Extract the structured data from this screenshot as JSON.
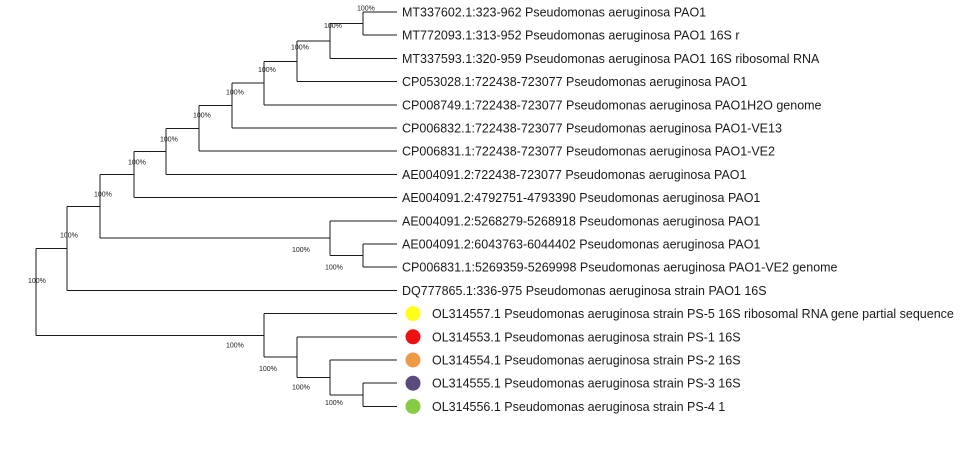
{
  "tree": {
    "leaves": [
      {
        "id": "L1",
        "label": "MT337602.1:323-962 Pseudomonas aeruginosa PAO1"
      },
      {
        "id": "L2",
        "label": "MT772093.1:313-952 Pseudomonas aeruginosa PAO1 16S r"
      },
      {
        "id": "L3",
        "label": "MT337593.1:320-959 Pseudomonas aeruginosa PAO1 16S ribosomal RNA"
      },
      {
        "id": "L4",
        "label": "CP053028.1:722438-723077 Pseudomonas aeruginosa PAO1"
      },
      {
        "id": "L5",
        "label": "CP008749.1:722438-723077 Pseudomonas aeruginosa PAO1H2O genome"
      },
      {
        "id": "L6",
        "label": "CP006832.1:722438-723077 Pseudomonas aeruginosa PAO1-VE13"
      },
      {
        "id": "L7",
        "label": "CP006831.1:722438-723077 Pseudomonas aeruginosa PAO1-VE2"
      },
      {
        "id": "L8",
        "label": "AE004091.2:722438-723077 Pseudomonas aeruginosa PAO1"
      },
      {
        "id": "L9",
        "label": "AE004091.2:4792751-4793390 Pseudomonas aeruginosa PAO1"
      },
      {
        "id": "L10",
        "label": "AE004091.2:5268279-5268918 Pseudomonas aeruginosa PAO1"
      },
      {
        "id": "L11",
        "label": "AE004091.2:6043763-6044402 Pseudomonas aeruginosa PAO1"
      },
      {
        "id": "L12",
        "label": "CP006831.1:5269359-5269998 Pseudomonas aeruginosa PAO1-VE2 genome"
      },
      {
        "id": "L13",
        "label": "DQ777865.1:336-975 Pseudomonas aeruginosa strain PAO1 16S"
      },
      {
        "id": "L14",
        "label": "OL314557.1 Pseudomonas aeruginosa strain PS-5 16S ribosomal RNA gene partial sequence",
        "marker_color": "#ffff1a"
      },
      {
        "id": "L15",
        "label": "OL314553.1 Pseudomonas aeruginosa strain PS-1 16S",
        "marker_color": "#ee1111"
      },
      {
        "id": "L16",
        "label": "OL314554.1 Pseudomonas aeruginosa strain PS-2 16S",
        "marker_color": "#ee9944"
      },
      {
        "id": "L17",
        "label": "OL314555.1 Pseudomonas aeruginosa strain PS-3 16S",
        "marker_color": "#5b4a7c"
      },
      {
        "id": "L18",
        "label": "OL314556.1 Pseudomonas aeruginosa strain PS-4 1",
        "marker_color": "#88cc44"
      }
    ],
    "clades": [
      {
        "id": "root",
        "support": "100%",
        "children": [
          "A",
          "P"
        ]
      },
      {
        "id": "A",
        "support": "100%",
        "children": [
          "B",
          "L13"
        ]
      },
      {
        "id": "B",
        "support": "100%",
        "children": [
          "C",
          "M"
        ]
      },
      {
        "id": "C",
        "support": "100%",
        "children": [
          "D",
          "L9"
        ]
      },
      {
        "id": "D",
        "support": "100%",
        "children": [
          "E",
          "L8"
        ]
      },
      {
        "id": "E",
        "support": "100%",
        "children": [
          "F",
          "L7"
        ]
      },
      {
        "id": "F",
        "support": "100%",
        "children": [
          "G",
          "L6"
        ]
      },
      {
        "id": "G",
        "support": "100%",
        "children": [
          "H",
          "L5"
        ]
      },
      {
        "id": "H",
        "support": "100%",
        "children": [
          "I",
          "L4"
        ]
      },
      {
        "id": "I",
        "support": "100%",
        "children": [
          "J",
          "L3"
        ]
      },
      {
        "id": "J",
        "support": "100%",
        "children": [
          "L1",
          "L2"
        ]
      },
      {
        "id": "M",
        "support": "100%",
        "children": [
          "L10",
          "N"
        ]
      },
      {
        "id": "N",
        "support": "100%",
        "children": [
          "L11",
          "L12"
        ]
      },
      {
        "id": "P",
        "support": "100%",
        "children": [
          "L14",
          "Q"
        ]
      },
      {
        "id": "Q",
        "support": "100%",
        "children": [
          "L15",
          "R"
        ]
      },
      {
        "id": "R",
        "support": "100%",
        "children": [
          "L16",
          "S"
        ]
      },
      {
        "id": "S",
        "support": "100%",
        "children": [
          "L17",
          "L18"
        ]
      }
    ],
    "colors": {
      "line": "#1a1a1a",
      "text": "#1a1a1a",
      "background": "#ffffff"
    }
  }
}
